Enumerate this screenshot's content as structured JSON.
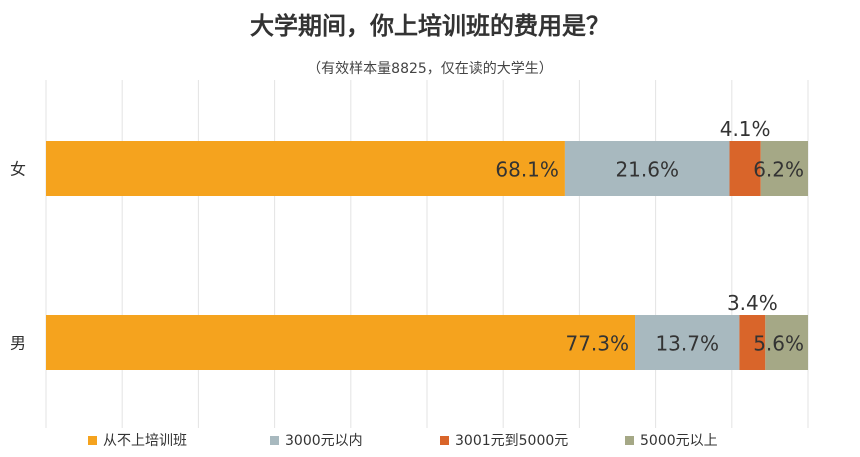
{
  "chart_data": {
    "type": "bar",
    "orientation": "horizontal",
    "stacked": "percent",
    "title": "大学期间，你上培训班的费用是？",
    "subtitle": "（有效样本量8825，仅在读的大学生）",
    "categories": [
      "女",
      "男"
    ],
    "series": [
      {
        "name": "从不上培训班",
        "color": "#F5A31E",
        "values": [
          68.1,
          77.3
        ],
        "labels": [
          "68.1%",
          "77.3%"
        ]
      },
      {
        "name": "3000元以内",
        "color": "#A8B9BF",
        "values": [
          21.6,
          13.7
        ],
        "labels": [
          "21.6%",
          "13.7%"
        ]
      },
      {
        "name": "3001元到5000元",
        "color": "#D9652A",
        "values": [
          4.1,
          3.4
        ],
        "labels": [
          "4.1%",
          "3.4%"
        ]
      },
      {
        "name": "5000元以上",
        "color": "#A5A886",
        "values": [
          6.2,
          5.6
        ],
        "labels": [
          "6.2%",
          "5.6%"
        ]
      }
    ],
    "xlim": [
      0,
      100
    ],
    "grid": true,
    "legend": "bottom"
  }
}
